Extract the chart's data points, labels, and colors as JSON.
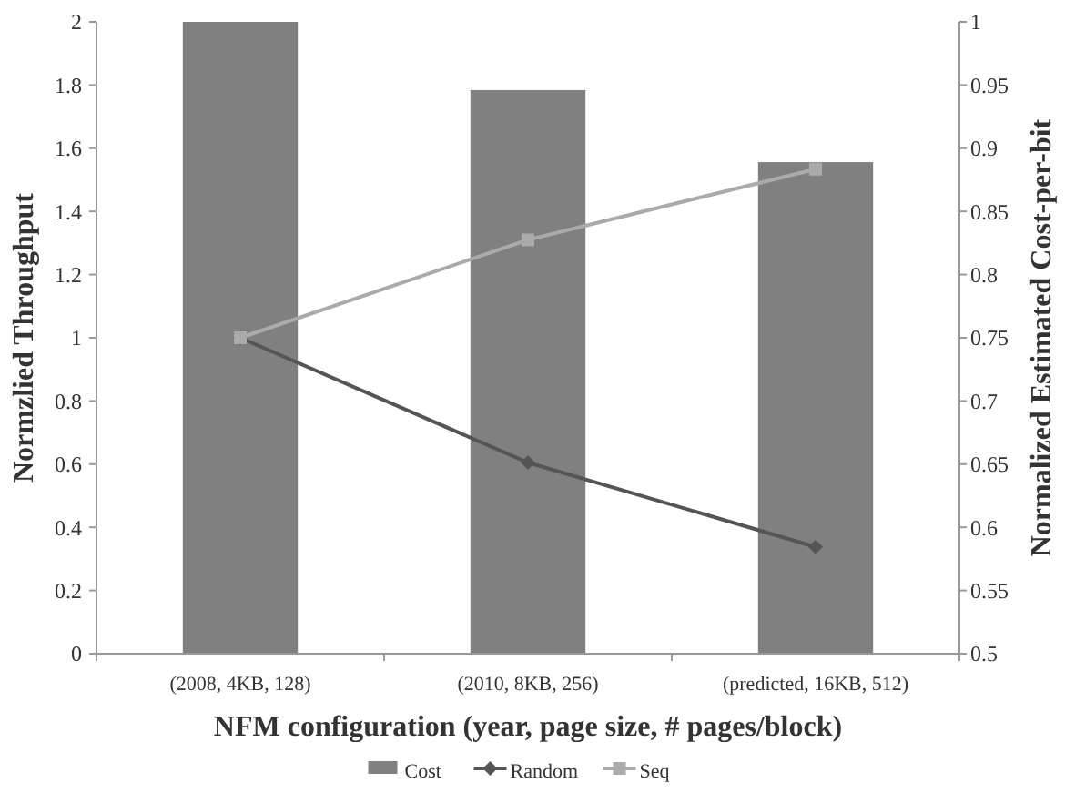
{
  "chart_data": {
    "type": "bar",
    "xlabel": "NFM configuration (year, page size, # pages/block)",
    "ylabel": "Normzlied Throughput",
    "y2label": "Normalized Estimated Cost-per-bit",
    "categories": [
      "(2008, 4KB, 128)",
      "(2010, 8KB, 256)",
      "(predicted, 16KB, 512)"
    ],
    "series": [
      {
        "name": "Cost",
        "axis": "y2",
        "color": "#808080",
        "values": [
          1,
          0.946,
          0.889
        ]
      },
      {
        "name": "Random",
        "type": "line",
        "axis": "y",
        "marker": "diamond",
        "color": "#555555",
        "values": [
          1,
          0.605,
          0.338
        ]
      },
      {
        "name": "Seq",
        "type": "line",
        "axis": "y",
        "marker": "square",
        "color": "#aaaaaa",
        "values": [
          1,
          1.31,
          1.534
        ]
      }
    ],
    "ylim": [
      0,
      2
    ],
    "yticks": [
      0,
      {
        "value": 0.2,
        "label": "0.2"
      },
      {
        "value": 0.4,
        "label": "0.4"
      },
      {
        "value": 0.6,
        "label": "0.6"
      },
      {
        "value": 0.8,
        "label": "0.8"
      },
      1,
      {
        "value": 1.2,
        "label": "1.2"
      },
      {
        "value": 1.4,
        "label": "1.4"
      },
      {
        "value": 1.6,
        "label": "1.6"
      },
      {
        "value": 1.8,
        "label": "1.8"
      },
      2
    ],
    "y2lim": [
      0.5,
      1
    ],
    "y2ticks": [
      0.5,
      0.55,
      0.6,
      0.65,
      0.7,
      0.75,
      0.8,
      0.85,
      0.9,
      0.95,
      1
    ],
    "grid": false,
    "legend": "bottom"
  }
}
